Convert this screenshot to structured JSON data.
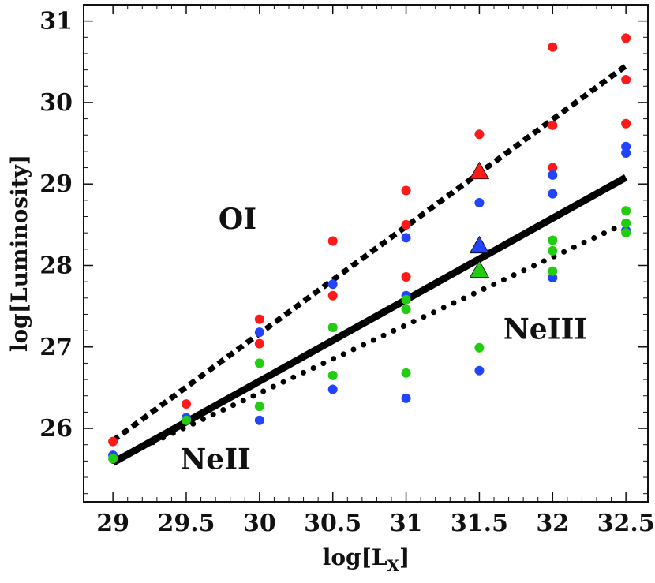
{
  "chart_data": {
    "type": "scatter",
    "xlabel": "log[L",
    "xlabel_sub": "X",
    "xlabel_end": "]",
    "ylabel": "log[Luminosity]",
    "xlim": [
      28.8,
      32.65
    ],
    "ylim": [
      25.1,
      31.2
    ],
    "xticks": [
      "29",
      "29.5",
      "30",
      "30.5",
      "31",
      "31.5",
      "32",
      "32.5"
    ],
    "yticks": [
      "26",
      "27",
      "28",
      "29",
      "30",
      "31"
    ],
    "colors": {
      "OI": "#ff1a1a",
      "NeII": "#22cc11",
      "NeIII": "#2244ff",
      "fit": "#000000"
    },
    "series": [
      {
        "name": "OI",
        "color": "#ff1a1a",
        "points": [
          [
            29,
            25.84
          ],
          [
            29.5,
            26.3
          ],
          [
            30,
            27.34
          ],
          [
            30,
            27.04
          ],
          [
            30.5,
            28.3
          ],
          [
            30.5,
            27.63
          ],
          [
            31,
            28.92
          ],
          [
            31,
            28.5
          ],
          [
            31,
            27.86
          ],
          [
            31.5,
            29.61
          ],
          [
            31.5,
            28.25
          ],
          [
            32,
            30.68
          ],
          [
            32,
            29.72
          ],
          [
            32,
            29.2
          ],
          [
            32.5,
            30.79
          ],
          [
            32.5,
            30.28
          ],
          [
            32.5,
            29.74
          ]
        ],
        "marker_triangle": [
          31.5,
          29.15
        ]
      },
      {
        "name": "NeIII",
        "color": "#2244ff",
        "points": [
          [
            29,
            25.67
          ],
          [
            29.5,
            26.13
          ],
          [
            30,
            27.18
          ],
          [
            30,
            26.1
          ],
          [
            30.5,
            27.77
          ],
          [
            30.5,
            26.48
          ],
          [
            31,
            28.34
          ],
          [
            31,
            27.63
          ],
          [
            31,
            26.37
          ],
          [
            31.5,
            28.77
          ],
          [
            31.5,
            26.71
          ],
          [
            32,
            29.11
          ],
          [
            32,
            28.88
          ],
          [
            32,
            27.85
          ],
          [
            32.5,
            29.46
          ],
          [
            32.5,
            29.38
          ],
          [
            32.5,
            28.43
          ]
        ],
        "marker_triangle": [
          31.5,
          28.24
        ]
      },
      {
        "name": "NeII",
        "color": "#22cc11",
        "points": [
          [
            29,
            25.63
          ],
          [
            29.5,
            26.1
          ],
          [
            30,
            26.8
          ],
          [
            30,
            26.27
          ],
          [
            30.5,
            27.24
          ],
          [
            30.5,
            26.65
          ],
          [
            31,
            27.58
          ],
          [
            31,
            27.46
          ],
          [
            31,
            26.68
          ],
          [
            31.5,
            26.99
          ],
          [
            32,
            28.31
          ],
          [
            32,
            28.18
          ],
          [
            32,
            27.93
          ],
          [
            32.5,
            28.67
          ],
          [
            32.5,
            28.52
          ],
          [
            32.5,
            28.4
          ]
        ],
        "marker_triangle": [
          31.5,
          27.94
        ]
      }
    ],
    "fit_lines": [
      {
        "name": "OI fit",
        "style": "dashed",
        "from": [
          29,
          25.85
        ],
        "to": [
          32.5,
          30.45
        ]
      },
      {
        "name": "NeIII fit",
        "style": "solid",
        "from": [
          29,
          25.58
        ],
        "to": [
          32.5,
          29.08
        ]
      },
      {
        "name": "NeII fit",
        "style": "dotted",
        "from": [
          29,
          25.6
        ],
        "to": [
          32.5,
          28.52
        ]
      }
    ],
    "annotations": [
      {
        "text": "OI",
        "at": [
          29.85,
          28.45
        ]
      },
      {
        "text": "NeII",
        "at": [
          29.7,
          25.5
        ]
      },
      {
        "text": "NeIII",
        "at": [
          31.95,
          27.1
        ]
      }
    ]
  }
}
